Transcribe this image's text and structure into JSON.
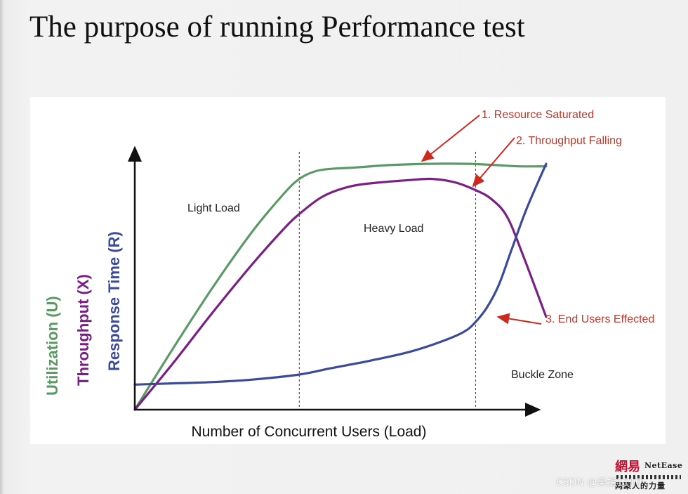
{
  "slide": {
    "title": "The purpose of running Performance test"
  },
  "chart_data": {
    "type": "line",
    "title": "",
    "xlabel": "Number of  Concurrent Users (Load)",
    "ylabels": [
      {
        "text": "Utilization (U)",
        "color": "#5a9a62"
      },
      {
        "text": "Throughput (X)",
        "color": "#7a1f86"
      },
      {
        "text": "Response Time (R)",
        "color": "#3c4a9a"
      }
    ],
    "xlim": [
      0,
      100
    ],
    "ylim": [
      0,
      100
    ],
    "grid": false,
    "zones": [
      {
        "label": "Light Load",
        "from": 0,
        "to": 42
      },
      {
        "label": "Heavy Load",
        "from": 42,
        "to": 87
      },
      {
        "label": "Buckle Zone",
        "from": 87,
        "to": 100
      }
    ],
    "boundaries": [
      42,
      87
    ],
    "series": [
      {
        "name": "Utilization (U)",
        "color": "#5b9a66",
        "x": [
          0,
          10,
          20,
          30,
          38,
          42,
          46,
          50,
          56,
          65,
          75,
          85,
          92,
          98,
          105
        ],
        "y": [
          0,
          25,
          49,
          71,
          86,
          92,
          95,
          96,
          96.5,
          97.5,
          98,
          98,
          97.5,
          97,
          97
        ]
      },
      {
        "name": "Throughput (X)",
        "color": "#7a1f86",
        "x": [
          0,
          10,
          20,
          30,
          38,
          42,
          48,
          55,
          62,
          70,
          76,
          82,
          87,
          91,
          95,
          99,
          105
        ],
        "y": [
          0,
          19,
          39,
          58,
          72,
          78,
          85,
          89,
          90.5,
          91.5,
          92,
          90.5,
          87.5,
          84,
          77,
          62,
          37
        ]
      },
      {
        "name": "Response Time (R)",
        "color": "#3c4a9a",
        "x": [
          0,
          10,
          20,
          30,
          42,
          50,
          60,
          70,
          78,
          84,
          87,
          90,
          93,
          96,
          100,
          105
        ],
        "y": [
          10,
          10.5,
          11,
          12,
          14,
          16.5,
          19.5,
          23,
          27,
          31,
          35,
          41,
          50,
          63,
          80,
          98
        ]
      }
    ],
    "annotations": [
      {
        "text": "1. Resource Saturated",
        "color": "#c0392b",
        "target_x": 73,
        "target_y": 98
      },
      {
        "text": "2. Throughput Falling",
        "color": "#c0392b",
        "target_x": 86,
        "target_y": 88
      },
      {
        "text": "3. End Users Effected",
        "color": "#c0392b",
        "target_x": 92,
        "target_y": 37
      }
    ]
  },
  "logo": {
    "cn": "網易",
    "en": "NetEase",
    "tag": "网聚人的力量"
  },
  "watermark": "CSDN @染指1110"
}
